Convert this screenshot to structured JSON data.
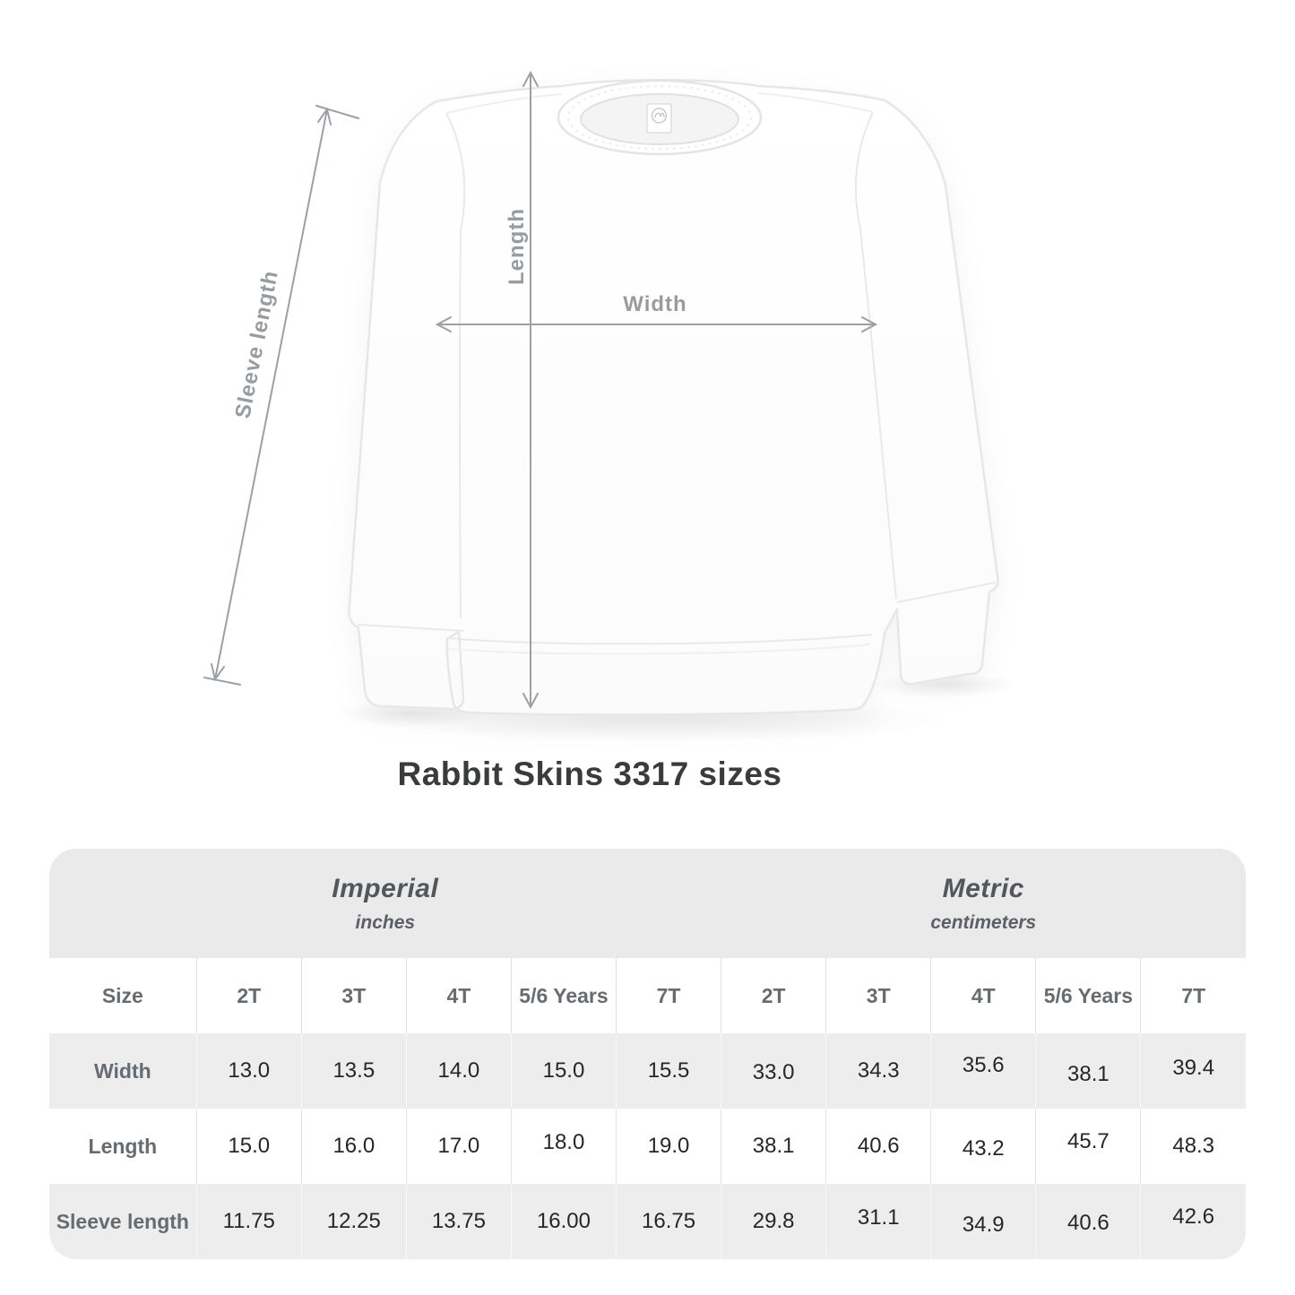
{
  "title": "Rabbit Skins 3317 sizes",
  "diagram": {
    "labels": {
      "length": "Length",
      "width": "Width",
      "sleeve_length": "Sleeve length"
    },
    "arrow_color": "#9aa0a6",
    "garment": "white crewneck kids sweatshirt with neck tag"
  },
  "size_table": {
    "unit_sections": [
      {
        "name": "Imperial",
        "unit": "inches"
      },
      {
        "name": "Metric",
        "unit": "centimeters"
      }
    ],
    "corner_label": "Size",
    "columns": [
      "2T",
      "3T",
      "4T",
      "5/6 Years",
      "7T",
      "2T",
      "3T",
      "4T",
      "5/6 Years",
      "7T"
    ],
    "rows": [
      {
        "label": "Width",
        "values": [
          "13.0",
          "13.5",
          "14.0",
          "15.0",
          "15.5",
          "33.0",
          "34.3",
          "35.6",
          "38.1",
          "39.4"
        ]
      },
      {
        "label": "Length",
        "values": [
          "15.0",
          "16.0",
          "17.0",
          "18.0",
          "19.0",
          "38.1",
          "40.6",
          "43.2",
          "45.7",
          "48.3"
        ]
      },
      {
        "label": "Sleeve length",
        "values": [
          "11.75",
          "12.25",
          "13.75",
          "16.00",
          "16.75",
          "29.8",
          "31.1",
          "34.9",
          "40.6",
          "42.6"
        ]
      }
    ],
    "colors": {
      "header_band": "#eaeaea",
      "row_alt": "#ededed"
    }
  }
}
